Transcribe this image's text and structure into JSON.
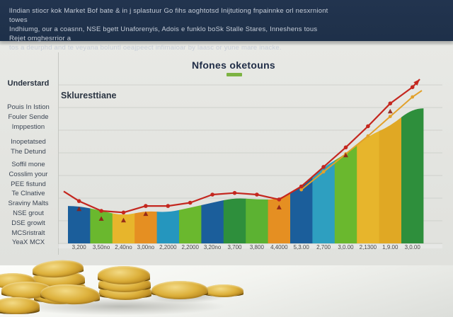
{
  "header": {
    "lines": [
      "lIndian stiocr kok Market Bof bate & in j splastuur Go fihs aoghtotsd Inijtutiong fnpainnke orl nesxrniont towes",
      "Indhiumg, our a coasnn, NSE bgett Unaforenyis, Adois e funklo boSk Stalle Stares, Inneshens tous Rejet omghesrrior a",
      "tos a deurphd and te veyana boluntl oeajpeect infimaioar by laasc or yune mare inacke."
    ]
  },
  "chart": {
    "title": "Nfones oketouns",
    "subtitle": "Skluresttiane",
    "accent_color": "#7cb342"
  },
  "sidebar": {
    "heading": "Understard",
    "items": [
      "Pouis In Istion",
      "Fouler Sende",
      "Imppestion",
      "Inopetatsed",
      "The Detund",
      "Soffil mone",
      "Cosslim your",
      "PEE fistund",
      "Te Clnative",
      "Sraviny Malts",
      "NSE grout",
      "DSE growlt",
      "MCSristralt",
      "YeaX MCX"
    ]
  },
  "chart_data": {
    "type": "bar",
    "title": "Nfones oketouns",
    "subtitle": "Skluresttiane",
    "xlabel": "",
    "ylabel": "",
    "ylim": [
      0,
      100
    ],
    "grid": true,
    "legend": false,
    "categories": [
      "3,200",
      "3,50no",
      "2,40no",
      "3,00no",
      "2,2000",
      "2,2000",
      "3,20no",
      "3,700",
      "3,800",
      "4,4000",
      "5,3.00",
      "2,700",
      "3,0.00",
      "2,1300",
      "1,9.00",
      "3,0.00"
    ],
    "bar_colors": [
      "#1b5e9b",
      "#6ab82e",
      "#e7b52c",
      "#e58f22",
      "#2596be",
      "#6ab82e",
      "#1b5e9b",
      "#2e8f3c",
      "#5cb232",
      "#e58f22",
      "#1b5e9b",
      "#2e9fc0",
      "#6ab82e",
      "#e7b52c",
      "#e0a824",
      "#2e8f3c"
    ],
    "series": [
      {
        "name": "market-area-bars",
        "type": "bar",
        "values": [
          23,
          20,
          17,
          20,
          19,
          22,
          25,
          28,
          27,
          27,
          35,
          47,
          55,
          66,
          72,
          83
        ]
      },
      {
        "name": "trend-line-red",
        "type": "line",
        "color": "#c4271f",
        "values": [
          26,
          20,
          19,
          23,
          23,
          25,
          30,
          31,
          30,
          27,
          35,
          47,
          59,
          72,
          86,
          96
        ],
        "start_value": 32,
        "arrow_end": true
      },
      {
        "name": "trend-line-orange",
        "type": "line",
        "color": "#e2a12b",
        "values": [
          null,
          null,
          null,
          null,
          null,
          null,
          null,
          null,
          null,
          null,
          33,
          44,
          55,
          66,
          78,
          90
        ]
      },
      {
        "name": "dip-markers",
        "type": "triangle-marker",
        "color": "#8e1f16",
        "indices": [
          0,
          1,
          2,
          3,
          9,
          12,
          14
        ],
        "offset": -5
      }
    ],
    "gridline_color": "#cfd1cc",
    "axis_label_color": "#4b4b4b"
  }
}
